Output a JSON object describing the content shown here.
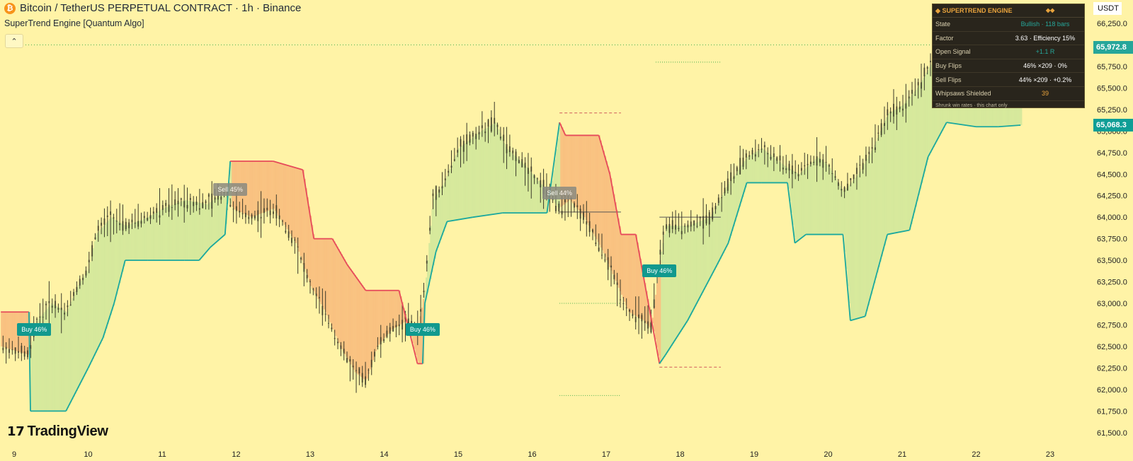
{
  "header": {
    "coin_glyph": "₿",
    "title": "Bitcoin / TetherUS PERPETUAL CONTRACT · 1h · Binance",
    "indicator": "SuperTrend Engine [Quantum Algo]",
    "collapse_glyph": "⌃"
  },
  "price_scale": {
    "unit": "USDT",
    "last_price": "65,972.8",
    "last_price_color": "#26a69a",
    "trend_level": "65,068.3",
    "trend_level_color": "#0f9e96"
  },
  "branding": {
    "logo_mark": "17",
    "logo_text": "TradingView"
  },
  "panel": {
    "title": "SUPERTREND ENGINE",
    "title_mark": "◆",
    "title_badge": "◆◆",
    "rows": [
      {
        "label": "State",
        "value": "Bullish · 118 bars",
        "color": "#26a69a"
      },
      {
        "label": "Factor",
        "value": "3.63 · Efficiency 15%",
        "color": "#ffffff"
      },
      {
        "label": "Open Signal",
        "value": "+1.1 R",
        "color": "#26a69a"
      },
      {
        "label": "Buy Flips",
        "value": "46% ×209 · 0%",
        "color": "#ffffff"
      },
      {
        "label": "Sell Flips",
        "value": "44% ×209 · +0.2%",
        "color": "#ffffff"
      },
      {
        "label": "Whipsaws Shielded",
        "value": "39",
        "color": "#e8a33c"
      }
    ],
    "footnote": "Shrunk win rates · this chart only"
  },
  "signals": [
    {
      "label": "Buy  46%",
      "type": "buy",
      "x": 9.27,
      "price": 62700
    },
    {
      "label": "Sell  45%",
      "type": "sell",
      "x": 11.92,
      "price": 64320
    },
    {
      "label": "Buy  46%",
      "type": "buy",
      "x": 14.52,
      "price": 62700
    },
    {
      "label": "Sell  44%",
      "type": "sell",
      "x": 16.37,
      "price": 64280
    },
    {
      "label": "Buy  46%",
      "type": "buy",
      "x": 17.72,
      "price": 63380
    }
  ],
  "chart_data": {
    "type": "line",
    "title": "Bitcoin / TetherUS PERPETUAL CONTRACT · 1h · Binance",
    "x_ticks": [
      "9",
      "10",
      "11",
      "12",
      "13",
      "14",
      "15",
      "16",
      "17",
      "18",
      "19",
      "20",
      "21",
      "22",
      "23"
    ],
    "y_ticks": [
      "66,250.0",
      "66,000.0",
      "65,750.0",
      "65,500.0",
      "65,250.0",
      "65,000.0",
      "64,750.0",
      "64,500.0",
      "64,250.0",
      "64,000.0",
      "63,750.0",
      "63,500.0",
      "63,250.0",
      "63,000.0",
      "62,750.0",
      "62,500.0",
      "62,250.0",
      "62,000.0",
      "61,750.0",
      "61,500.0"
    ],
    "ylim": [
      61500,
      66250
    ],
    "xlim": [
      8.82,
      23.12
    ],
    "grid": false,
    "colors": {
      "up_trend": "#1aa89e",
      "down_trend": "#e64a5a",
      "bull_fill": "#cfe69a",
      "bear_fill": "#f8b87a",
      "candle": "#3a3a2a",
      "guide_green": "#4caf50",
      "guide_red": "#d05a5a"
    },
    "series": [
      {
        "name": "Price",
        "x": [
          8.82,
          9.2,
          9.3,
          9.5,
          9.7,
          9.85,
          10.0,
          10.1,
          10.3,
          10.5,
          10.8,
          11.0,
          11.3,
          11.6,
          11.85,
          11.95,
          12.2,
          12.5,
          12.8,
          13.0,
          13.2,
          13.4,
          13.6,
          13.75,
          13.9,
          14.1,
          14.3,
          14.45,
          14.55,
          14.65,
          14.8,
          15.0,
          15.3,
          15.5,
          15.65,
          15.9,
          16.2,
          16.35,
          16.5,
          16.7,
          16.95,
          17.1,
          17.3,
          17.5,
          17.6,
          17.72,
          17.8,
          18.1,
          18.4,
          18.65,
          18.9,
          19.1,
          19.4,
          19.6,
          19.85,
          20.0,
          20.2,
          20.4,
          20.6,
          20.8,
          21.0,
          21.2,
          21.4,
          21.6,
          21.8,
          22.1,
          22.3,
          22.5
        ],
        "values": [
          62500,
          62400,
          62800,
          63000,
          62900,
          63200,
          63400,
          63800,
          64000,
          63900,
          64000,
          64100,
          64200,
          64150,
          64300,
          64100,
          64000,
          64100,
          63700,
          63200,
          62900,
          62500,
          62200,
          62100,
          62500,
          62700,
          62800,
          62700,
          63200,
          64200,
          64400,
          64800,
          65000,
          65100,
          64800,
          64600,
          64300,
          64100,
          64200,
          64000,
          63600,
          63300,
          62900,
          62800,
          62700,
          63500,
          63900,
          63900,
          64000,
          64400,
          64700,
          64800,
          64600,
          64500,
          64700,
          64600,
          64300,
          64500,
          64800,
          65200,
          65300,
          65500,
          65800,
          66100,
          66200,
          66100,
          65900,
          65970
        ]
      },
      {
        "name": "SuperTrend",
        "x": [
          8.82,
          9.2,
          9.22,
          9.45,
          9.7,
          9.85,
          10.0,
          10.2,
          10.35,
          10.5,
          10.8,
          11.3,
          11.5,
          11.65,
          11.85,
          11.92,
          12.5,
          12.9,
          13.05,
          13.3,
          13.5,
          13.75,
          14.2,
          14.45,
          14.52,
          14.55,
          14.7,
          14.85,
          15.2,
          15.6,
          16.2,
          16.37,
          16.45,
          16.9,
          17.05,
          17.2,
          17.4,
          17.72,
          17.8,
          18.1,
          18.5,
          18.65,
          18.9,
          19.1,
          19.45,
          19.55,
          19.7,
          20.2,
          20.3,
          20.5,
          20.8,
          21.1,
          21.35,
          21.6,
          22.0,
          22.3,
          22.6
        ],
        "values": [
          62900,
          62900,
          61750,
          61750,
          61750,
          62000,
          62250,
          62600,
          63000,
          63500,
          63500,
          63500,
          63500,
          63650,
          63800,
          64650,
          64650,
          64550,
          63750,
          63750,
          63450,
          63150,
          63150,
          62300,
          62300,
          63000,
          63600,
          63950,
          64000,
          64050,
          64050,
          65100,
          64950,
          64950,
          64500,
          63800,
          63800,
          62300,
          62400,
          62800,
          63450,
          63700,
          64400,
          64400,
          64400,
          63700,
          63800,
          63800,
          62800,
          62850,
          63800,
          63850,
          64700,
          65100,
          65050,
          65050,
          65068
        ]
      }
    ]
  }
}
